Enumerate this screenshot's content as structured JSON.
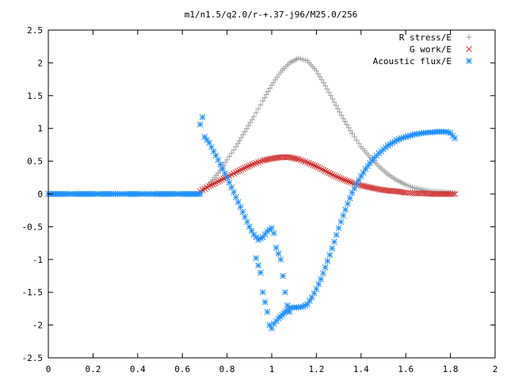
{
  "chart_data": {
    "type": "scatter",
    "title": "m1/n1.5/q2.0/r-+.37-j96/M25.0/256",
    "xlabel": "",
    "ylabel": "",
    "xlim": [
      0,
      2
    ],
    "ylim": [
      -2.5,
      2.5
    ],
    "x_ticks": [
      "0",
      "0.2",
      "0.4",
      "0.6",
      "0.8",
      "1",
      "1.2",
      "1.4",
      "1.6",
      "1.8",
      "2"
    ],
    "y_ticks": [
      "2.5",
      "2",
      "1.5",
      "1",
      "0.5",
      "0",
      "-0.5",
      "-1",
      "-1.5",
      "-2",
      "-2.5"
    ],
    "grid": false,
    "legend_position": "top-right",
    "series": [
      {
        "name": "R stress/E",
        "marker": "plus",
        "color": "#a0a0a0",
        "points": [
          [
            0.68,
            0.02
          ],
          [
            0.72,
            0.15
          ],
          [
            0.76,
            0.32
          ],
          [
            0.8,
            0.52
          ],
          [
            0.84,
            0.72
          ],
          [
            0.88,
            0.95
          ],
          [
            0.92,
            1.18
          ],
          [
            0.96,
            1.42
          ],
          [
            1.0,
            1.66
          ],
          [
            1.04,
            1.86
          ],
          [
            1.08,
            2.0
          ],
          [
            1.12,
            2.07
          ],
          [
            1.16,
            2.03
          ],
          [
            1.2,
            1.88
          ],
          [
            1.24,
            1.65
          ],
          [
            1.28,
            1.4
          ],
          [
            1.32,
            1.15
          ],
          [
            1.36,
            0.92
          ],
          [
            1.4,
            0.72
          ],
          [
            1.44,
            0.56
          ],
          [
            1.48,
            0.42
          ],
          [
            1.52,
            0.3
          ],
          [
            1.56,
            0.21
          ],
          [
            1.6,
            0.14
          ],
          [
            1.64,
            0.09
          ],
          [
            1.68,
            0.06
          ],
          [
            1.72,
            0.04
          ],
          [
            1.76,
            0.03
          ],
          [
            1.8,
            0.02
          ],
          [
            1.82,
            0.02
          ]
        ]
      },
      {
        "name": "G work/E",
        "marker": "cross",
        "color": "#d03030",
        "points": [
          [
            0.68,
            0.04
          ],
          [
            0.72,
            0.12
          ],
          [
            0.76,
            0.19
          ],
          [
            0.8,
            0.26
          ],
          [
            0.84,
            0.33
          ],
          [
            0.88,
            0.4
          ],
          [
            0.92,
            0.46
          ],
          [
            0.96,
            0.51
          ],
          [
            1.0,
            0.54
          ],
          [
            1.04,
            0.56
          ],
          [
            1.08,
            0.56
          ],
          [
            1.12,
            0.53
          ],
          [
            1.16,
            0.48
          ],
          [
            1.2,
            0.42
          ],
          [
            1.24,
            0.35
          ],
          [
            1.28,
            0.28
          ],
          [
            1.32,
            0.22
          ],
          [
            1.36,
            0.17
          ],
          [
            1.4,
            0.13
          ],
          [
            1.44,
            0.1
          ],
          [
            1.48,
            0.07
          ],
          [
            1.52,
            0.05
          ],
          [
            1.56,
            0.04
          ],
          [
            1.6,
            0.02
          ],
          [
            1.64,
            0.01
          ],
          [
            1.68,
            0.01
          ],
          [
            1.72,
            0.0
          ],
          [
            1.76,
            0.0
          ],
          [
            1.8,
            0.0
          ],
          [
            1.82,
            0.0
          ]
        ]
      },
      {
        "name": "Acoustic flux/E",
        "marker": "asterisk",
        "color": "#1f8fff",
        "points": [
          [
            0.0,
            0.0
          ],
          [
            0.04,
            0.0
          ],
          [
            0.08,
            0.0
          ],
          [
            0.12,
            0.0
          ],
          [
            0.16,
            0.0
          ],
          [
            0.2,
            0.0
          ],
          [
            0.24,
            0.0
          ],
          [
            0.28,
            0.0
          ],
          [
            0.32,
            0.0
          ],
          [
            0.36,
            0.0
          ],
          [
            0.4,
            0.0
          ],
          [
            0.44,
            0.0
          ],
          [
            0.48,
            0.0
          ],
          [
            0.52,
            0.0
          ],
          [
            0.56,
            0.0
          ],
          [
            0.6,
            0.0
          ],
          [
            0.64,
            0.0
          ],
          [
            0.68,
            0.0
          ],
          [
            0.68,
            1.06
          ],
          [
            0.69,
            1.17
          ],
          [
            0.7,
            0.87
          ],
          [
            0.72,
            0.78
          ],
          [
            0.74,
            0.65
          ],
          [
            0.76,
            0.52
          ],
          [
            0.78,
            0.38
          ],
          [
            0.8,
            0.25
          ],
          [
            0.82,
            0.1
          ],
          [
            0.84,
            -0.05
          ],
          [
            0.86,
            -0.2
          ],
          [
            0.88,
            -0.35
          ],
          [
            0.9,
            -0.5
          ],
          [
            0.92,
            -0.62
          ],
          [
            0.94,
            -0.7
          ],
          [
            0.96,
            -0.66
          ],
          [
            0.98,
            -0.57
          ],
          [
            1.0,
            -0.52
          ],
          [
            1.01,
            -0.6
          ],
          [
            1.02,
            -0.82
          ],
          [
            1.04,
            -1.0
          ],
          [
            1.05,
            -1.25
          ],
          [
            1.06,
            -1.5
          ],
          [
            1.07,
            -1.7
          ],
          [
            1.08,
            -1.8
          ],
          [
            0.93,
            -0.98
          ],
          [
            0.95,
            -1.2
          ],
          [
            0.96,
            -1.5
          ],
          [
            0.98,
            -1.8
          ],
          [
            0.99,
            -2.0
          ],
          [
            1.0,
            -2.05
          ],
          [
            1.01,
            -1.98
          ],
          [
            1.03,
            -1.9
          ],
          [
            1.08,
            -1.74
          ],
          [
            1.1,
            -1.73
          ],
          [
            1.12,
            -1.73
          ],
          [
            1.14,
            -1.72
          ],
          [
            1.16,
            -1.68
          ],
          [
            1.18,
            -1.58
          ],
          [
            1.2,
            -1.45
          ],
          [
            1.22,
            -1.3
          ],
          [
            1.24,
            -1.12
          ],
          [
            1.26,
            -0.93
          ],
          [
            1.28,
            -0.73
          ],
          [
            1.3,
            -0.52
          ],
          [
            1.32,
            -0.33
          ],
          [
            1.34,
            -0.15
          ],
          [
            1.36,
            0.02
          ],
          [
            1.38,
            0.15
          ],
          [
            1.4,
            0.27
          ],
          [
            1.42,
            0.38
          ],
          [
            1.44,
            0.47
          ],
          [
            1.46,
            0.55
          ],
          [
            1.48,
            0.62
          ],
          [
            1.5,
            0.68
          ],
          [
            1.52,
            0.74
          ],
          [
            1.54,
            0.78
          ],
          [
            1.56,
            0.82
          ],
          [
            1.58,
            0.85
          ],
          [
            1.6,
            0.87
          ],
          [
            1.62,
            0.89
          ],
          [
            1.64,
            0.91
          ],
          [
            1.66,
            0.92
          ],
          [
            1.68,
            0.93
          ],
          [
            1.7,
            0.94
          ],
          [
            1.72,
            0.94
          ],
          [
            1.74,
            0.95
          ],
          [
            1.76,
            0.95
          ],
          [
            1.78,
            0.95
          ],
          [
            1.8,
            0.93
          ],
          [
            1.82,
            0.85
          ]
        ]
      }
    ]
  }
}
